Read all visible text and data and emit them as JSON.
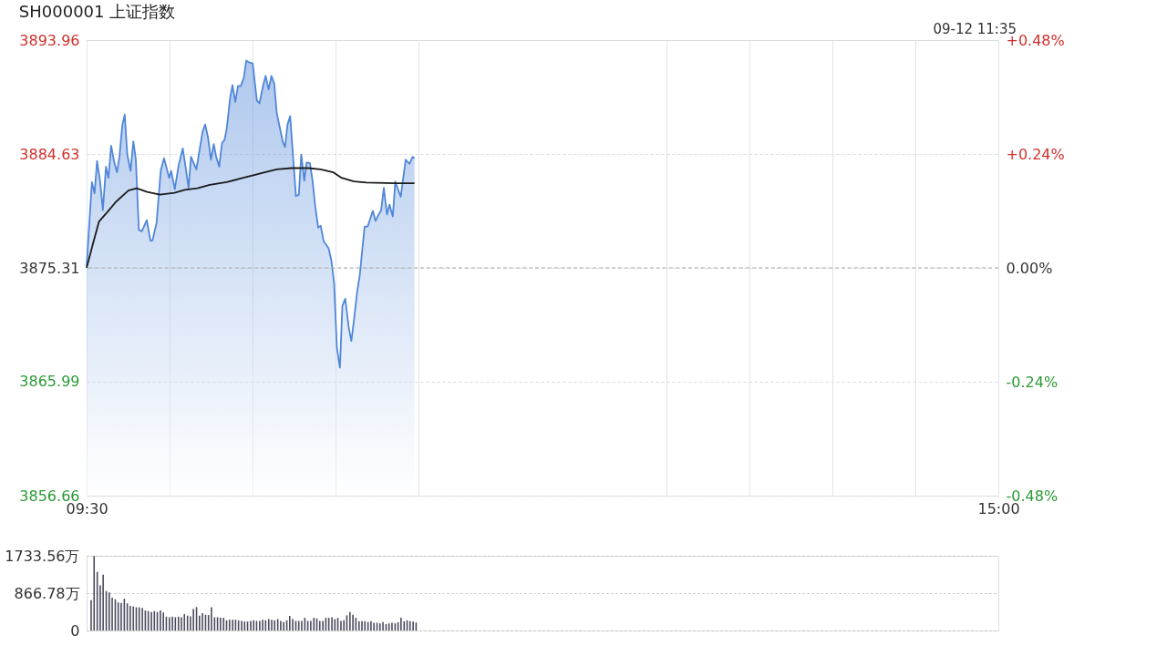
{
  "chart_data": [
    {
      "type": "line",
      "title": "SH000001 上证指数",
      "annotations": [
        "09-12 11:35"
      ],
      "xlim": [
        9.5,
        15
      ],
      "xticks": [
        {
          "value": 9.5,
          "label": "09:30"
        },
        {
          "value": 10,
          "label": null
        },
        {
          "value": 10.5,
          "label": null
        },
        {
          "value": 11,
          "label": null
        },
        {
          "value": 11.5,
          "label": null
        },
        {
          "value": 13,
          "label": null
        },
        {
          "value": 13.5,
          "label": null
        },
        {
          "value": 14,
          "label": null
        },
        {
          "value": 14.5,
          "label": null
        },
        {
          "value": 15,
          "label": "15:00"
        }
      ],
      "ylim": [
        3856.66,
        3893.96
      ],
      "yticks": [
        3856.66,
        3865.99,
        3875.31,
        3884.63,
        3893.96
      ],
      "y2lim": [
        -0.48,
        0.48
      ],
      "y2ticks": [
        {
          "value": -0.48,
          "label": "-0.48%"
        },
        {
          "value": -0.24,
          "label": "-0.24%"
        },
        {
          "value": 0,
          "label": "0.00%"
        },
        {
          "value": 0.24,
          "label": "+0.24%"
        },
        {
          "value": 0.48,
          "label": "+0.48%"
        }
      ],
      "grid": true,
      "ref_lines": [
        {
          "axis": "y",
          "value": 3875.31,
          "line_style": "dashed",
          "color": "#aaaaaa"
        }
      ],
      "series": [
        {
          "type": "area",
          "color": "#4f86d9",
          "x": [
            9.5,
            9.532,
            9.548,
            9.563,
            9.582,
            9.598,
            9.617,
            9.632,
            9.648,
            9.667,
            9.683,
            9.698,
            9.715,
            9.73,
            9.745,
            9.765,
            9.782,
            9.797,
            9.815,
            9.833,
            9.863,
            9.885,
            9.897,
            9.922,
            9.947,
            9.967,
            9.998,
            10.01,
            10.032,
            10.055,
            10.08,
            10.098,
            10.115,
            10.13,
            10.162,
            10.2,
            10.215,
            10.232,
            10.25,
            10.267,
            10.282,
            10.3,
            10.317,
            10.332,
            10.345,
            10.367,
            10.38,
            10.397,
            10.413,
            10.43,
            10.448,
            10.463,
            10.483,
            10.502,
            10.527,
            10.543,
            10.565,
            10.58,
            10.598,
            10.615,
            10.632,
            10.647,
            10.665,
            10.685,
            10.697,
            10.712,
            10.728,
            10.748,
            10.763,
            10.78,
            10.795,
            10.813,
            10.827,
            10.847,
            10.862,
            10.88,
            10.897,
            10.912,
            10.93,
            10.96,
            10.977,
            10.993,
            11.01,
            11.028,
            11.043,
            11.06,
            11.082,
            11.097,
            11.113,
            11.132,
            11.148,
            11.177,
            11.195,
            11.227,
            11.243,
            11.262,
            11.277,
            11.293,
            11.312,
            11.327,
            11.347,
            11.362,
            11.378,
            11.395,
            11.425,
            11.447,
            11.467,
            11.478
          ],
          "values": [
            3875.43,
            3882.33,
            3881.41,
            3884.06,
            3882.33,
            3880.03,
            3883.6,
            3882.68,
            3885.32,
            3883.94,
            3883.14,
            3884.4,
            3886.94,
            3887.86,
            3884.63,
            3883.25,
            3885.67,
            3884.17,
            3878.42,
            3878.3,
            3879.22,
            3877.54,
            3877.54,
            3878.99,
            3883.25,
            3884.29,
            3882.68,
            3883.25,
            3881.76,
            3883.71,
            3885.09,
            3883.48,
            3881.87,
            3884.4,
            3883.37,
            3886.48,
            3887.05,
            3886.02,
            3884.17,
            3885.44,
            3884.4,
            3883.6,
            3885.55,
            3885.78,
            3886.7,
            3889.35,
            3890.27,
            3888.89,
            3890.2,
            3890.2,
            3890.85,
            3892.28,
            3892.12,
            3892.05,
            3889.01,
            3888.78,
            3890.27,
            3891.03,
            3889.93,
            3891.03,
            3890.39,
            3887.97,
            3886.82,
            3885.55,
            3885.21,
            3887.05,
            3887.74,
            3883.94,
            3881.18,
            3881.3,
            3884.59,
            3882.45,
            3883.94,
            3883.9,
            3882.56,
            3880.26,
            3878.6,
            3878.76,
            3877.5,
            3876.92,
            3875.89,
            3874.04,
            3868.75,
            3867.14,
            3872.2,
            3872.78,
            3870.36,
            3869.32,
            3871.05,
            3873.35,
            3874.73,
            3878.69,
            3878.69,
            3879.98,
            3879.15,
            3879.68,
            3880.03,
            3881.87,
            3879.68,
            3880.49,
            3879.52,
            3882.38,
            3881.76,
            3881.13,
            3884.17,
            3883.83,
            3884.4,
            3884.29
          ]
        },
        {
          "type": "line",
          "color": "#1a1a1a",
          "x": [
            9.5,
            9.538,
            9.575,
            9.627,
            9.677,
            9.752,
            9.802,
            9.865,
            9.942,
            10.03,
            10.092,
            10.168,
            10.243,
            10.345,
            10.445,
            10.522,
            10.558,
            10.647,
            10.735,
            10.837,
            10.912,
            10.987,
            11.038,
            11.113,
            11.188,
            11.365,
            11.478
          ],
          "values": [
            3875.31,
            3877.27,
            3879.11,
            3879.91,
            3880.72,
            3881.64,
            3881.83,
            3881.53,
            3881.3,
            3881.46,
            3881.69,
            3881.83,
            3882.1,
            3882.33,
            3882.68,
            3882.95,
            3883.07,
            3883.37,
            3883.48,
            3883.48,
            3883.37,
            3883.14,
            3882.68,
            3882.38,
            3882.29,
            3882.24,
            3882.24
          ]
        }
      ]
    },
    {
      "type": "bar",
      "color": "#4b4b5e",
      "xlim": [
        9.5,
        15
      ],
      "tick_labels": "y",
      "grid": "y",
      "ylim": [
        0,
        1733.56
      ],
      "yticks": [
        0,
        {
          "value": 866.78,
          "label": "866.78万"
        },
        {
          "value": 1733.56,
          "label": "1733.56万"
        }
      ],
      "x": [
        9.5,
        9.518,
        9.537,
        9.555,
        9.573,
        9.592,
        9.61,
        9.628,
        9.647,
        9.665,
        9.683,
        9.702,
        9.72,
        9.738,
        9.757,
        9.775,
        9.793,
        9.812,
        9.83,
        9.848,
        9.867,
        9.885,
        9.903,
        9.922,
        9.94,
        9.958,
        9.977,
        9.995,
        10.013,
        10.032,
        10.05,
        10.068,
        10.087,
        10.105,
        10.123,
        10.142,
        10.16,
        10.178,
        10.197,
        10.215,
        10.233,
        10.252,
        10.27,
        10.288,
        10.307,
        10.325,
        10.343,
        10.362,
        10.38,
        10.398,
        10.417,
        10.435,
        10.453,
        10.472,
        10.49,
        10.508,
        10.527,
        10.545,
        10.563,
        10.582,
        10.6,
        10.618,
        10.637,
        10.655,
        10.673,
        10.692,
        10.71,
        10.728,
        10.747,
        10.765,
        10.783,
        10.802,
        10.82,
        10.838,
        10.857,
        10.875,
        10.893,
        10.912,
        10.93,
        10.948,
        10.967,
        10.985,
        11.003,
        11.022,
        11.04,
        11.058,
        11.077,
        11.095,
        11.113,
        11.132,
        11.15,
        11.168,
        11.187,
        11.205,
        11.223,
        11.242,
        11.26,
        11.278,
        11.297,
        11.315,
        11.333,
        11.352,
        11.37,
        11.388,
        11.407,
        11.425,
        11.443,
        11.462,
        11.48
      ],
      "values": [
        702,
        1726,
        1360,
        1045,
        1296,
        916,
        881,
        759,
        723,
        652,
        637,
        737,
        630,
        573,
        558,
        537,
        537,
        523,
        465,
        451,
        430,
        451,
        430,
        465,
        415,
        322,
        308,
        322,
        308,
        322,
        308,
        379,
        344,
        329,
        501,
        544,
        344,
        401,
        365,
        358,
        537,
        308,
        308,
        294,
        294,
        236,
        251,
        251,
        251,
        236,
        222,
        208,
        208,
        222,
        236,
        222,
        222,
        251,
        236,
        265,
        251,
        236,
        265,
        222,
        193,
        236,
        337,
        265,
        222,
        222,
        222,
        294,
        222,
        222,
        294,
        279,
        222,
        222,
        294,
        294,
        308,
        265,
        294,
        222,
        236,
        351,
        430,
        365,
        294,
        215,
        215,
        215,
        200,
        215,
        179,
        179,
        165,
        193,
        150,
        165,
        179,
        165,
        193,
        294,
        215,
        236,
        215,
        208,
        186
      ]
    }
  ]
}
